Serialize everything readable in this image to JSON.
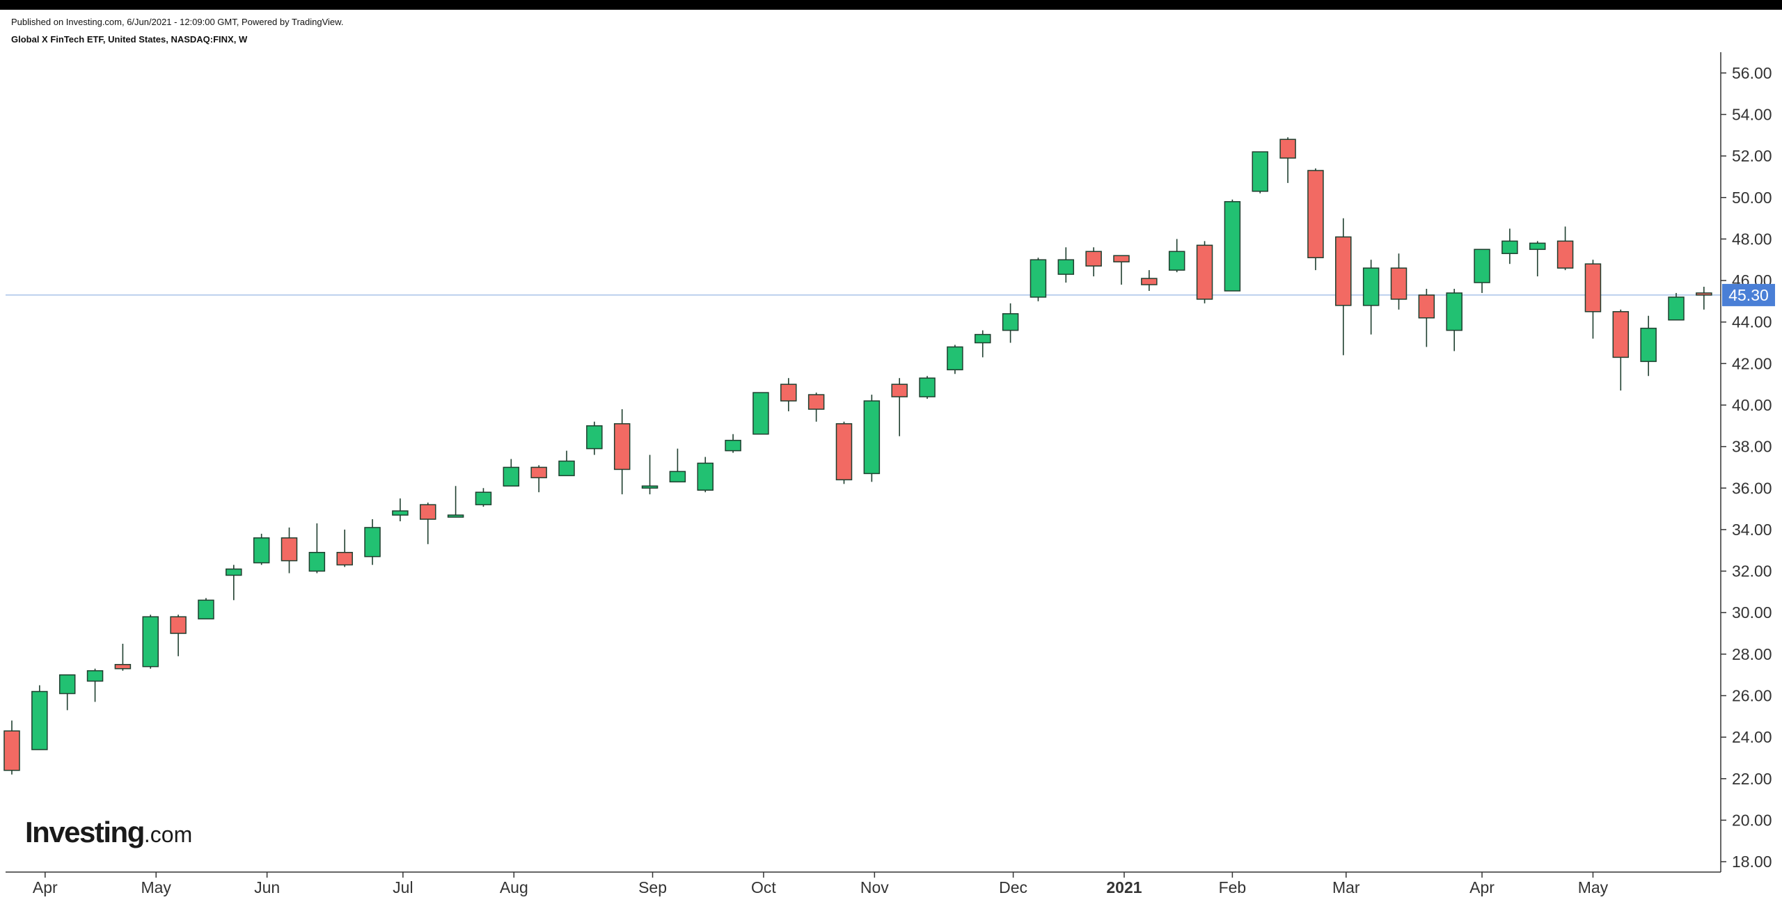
{
  "header": {
    "published": "Published on Investing.com, 6/Jun/2021 - 12:09:00 GMT, Powered by TradingView.",
    "subtitle": "Global X FinTech ETF, United States, NASDAQ:FINX, W"
  },
  "logo": {
    "brand": "Investing",
    "tld": ".com"
  },
  "colors": {
    "up": "#22c172",
    "down": "#f26a63",
    "wick": "#1f3f2f",
    "price_line": "#a9c3e8",
    "price_label_bg": "#4a7fd6"
  },
  "chart_data": {
    "type": "candlestick",
    "timeframe": "W",
    "ylim": [
      17.5,
      57.0
    ],
    "y_ticks": [
      "18.00",
      "20.00",
      "22.00",
      "24.00",
      "26.00",
      "28.00",
      "30.00",
      "32.00",
      "34.00",
      "36.00",
      "38.00",
      "40.00",
      "42.00",
      "44.00",
      "46.00",
      "48.00",
      "50.00",
      "52.00",
      "54.00",
      "56.00"
    ],
    "x_labels": [
      {
        "label": "Apr",
        "at": 1.2,
        "bold": false
      },
      {
        "label": "May",
        "at": 5.2,
        "bold": false
      },
      {
        "label": "Jun",
        "at": 9.2,
        "bold": false
      },
      {
        "label": "Jul",
        "at": 14.1,
        "bold": false
      },
      {
        "label": "Aug",
        "at": 18.1,
        "bold": false
      },
      {
        "label": "Sep",
        "at": 23.1,
        "bold": false
      },
      {
        "label": "Oct",
        "at": 27.1,
        "bold": false
      },
      {
        "label": "Nov",
        "at": 31.1,
        "bold": false
      },
      {
        "label": "Dec",
        "at": 36.1,
        "bold": false
      },
      {
        "label": "2021",
        "at": 40.1,
        "bold": true
      },
      {
        "label": "Feb",
        "at": 44.0,
        "bold": false
      },
      {
        "label": "Mar",
        "at": 48.1,
        "bold": false
      },
      {
        "label": "Apr",
        "at": 53.0,
        "bold": false
      },
      {
        "label": "May",
        "at": 57.0,
        "bold": false
      }
    ],
    "current_price": 45.3,
    "current_price_label": "45.30",
    "candles": [
      {
        "o": 24.3,
        "h": 24.8,
        "l": 22.2,
        "c": 22.4
      },
      {
        "o": 23.4,
        "h": 26.5,
        "l": 23.4,
        "c": 26.2
      },
      {
        "o": 26.1,
        "h": 27.0,
        "l": 25.3,
        "c": 27.0
      },
      {
        "o": 26.7,
        "h": 27.3,
        "l": 25.7,
        "c": 27.2
      },
      {
        "o": 27.5,
        "h": 28.5,
        "l": 27.2,
        "c": 27.3
      },
      {
        "o": 27.4,
        "h": 29.9,
        "l": 27.3,
        "c": 29.8
      },
      {
        "o": 29.8,
        "h": 29.9,
        "l": 27.9,
        "c": 29.0
      },
      {
        "o": 29.7,
        "h": 30.7,
        "l": 29.7,
        "c": 30.6
      },
      {
        "o": 31.8,
        "h": 32.3,
        "l": 30.6,
        "c": 32.1
      },
      {
        "o": 32.4,
        "h": 33.8,
        "l": 32.3,
        "c": 33.6
      },
      {
        "o": 33.6,
        "h": 34.1,
        "l": 31.9,
        "c": 32.5
      },
      {
        "o": 32.0,
        "h": 34.3,
        "l": 31.9,
        "c": 32.9
      },
      {
        "o": 32.9,
        "h": 34.0,
        "l": 32.2,
        "c": 32.3
      },
      {
        "o": 32.7,
        "h": 34.5,
        "l": 32.3,
        "c": 34.1
      },
      {
        "o": 34.7,
        "h": 35.5,
        "l": 34.4,
        "c": 34.9
      },
      {
        "o": 35.2,
        "h": 35.3,
        "l": 33.3,
        "c": 34.5
      },
      {
        "o": 34.6,
        "h": 36.1,
        "l": 34.6,
        "c": 34.7
      },
      {
        "o": 35.2,
        "h": 36.0,
        "l": 35.1,
        "c": 35.8
      },
      {
        "o": 36.1,
        "h": 37.4,
        "l": 36.1,
        "c": 37.0
      },
      {
        "o": 37.0,
        "h": 37.1,
        "l": 35.8,
        "c": 36.5
      },
      {
        "o": 36.6,
        "h": 37.8,
        "l": 36.6,
        "c": 37.3
      },
      {
        "o": 37.9,
        "h": 39.2,
        "l": 37.6,
        "c": 39.0
      },
      {
        "o": 39.1,
        "h": 39.8,
        "l": 35.7,
        "c": 36.9
      },
      {
        "o": 36.0,
        "h": 37.6,
        "l": 35.7,
        "c": 36.1
      },
      {
        "o": 36.3,
        "h": 37.9,
        "l": 36.3,
        "c": 36.8
      },
      {
        "o": 35.9,
        "h": 37.5,
        "l": 35.8,
        "c": 37.2
      },
      {
        "o": 37.8,
        "h": 38.6,
        "l": 37.7,
        "c": 38.3
      },
      {
        "o": 38.6,
        "h": 40.6,
        "l": 38.6,
        "c": 40.6
      },
      {
        "o": 41.0,
        "h": 41.3,
        "l": 39.7,
        "c": 40.2
      },
      {
        "o": 40.5,
        "h": 40.6,
        "l": 39.2,
        "c": 39.8
      },
      {
        "o": 39.1,
        "h": 39.2,
        "l": 36.2,
        "c": 36.4
      },
      {
        "o": 36.7,
        "h": 40.5,
        "l": 36.3,
        "c": 40.2
      },
      {
        "o": 41.0,
        "h": 41.3,
        "l": 38.5,
        "c": 40.4
      },
      {
        "o": 40.4,
        "h": 41.4,
        "l": 40.3,
        "c": 41.3
      },
      {
        "o": 41.7,
        "h": 42.9,
        "l": 41.5,
        "c": 42.8
      },
      {
        "o": 43.0,
        "h": 43.6,
        "l": 42.3,
        "c": 43.4
      },
      {
        "o": 43.6,
        "h": 44.9,
        "l": 43.0,
        "c": 44.4
      },
      {
        "o": 45.2,
        "h": 47.1,
        "l": 45.0,
        "c": 47.0
      },
      {
        "o": 46.3,
        "h": 47.6,
        "l": 45.9,
        "c": 47.0
      },
      {
        "o": 47.4,
        "h": 47.6,
        "l": 46.2,
        "c": 46.7
      },
      {
        "o": 47.2,
        "h": 47.2,
        "l": 45.8,
        "c": 46.9
      },
      {
        "o": 46.1,
        "h": 46.5,
        "l": 45.5,
        "c": 45.8
      },
      {
        "o": 46.5,
        "h": 48.0,
        "l": 46.4,
        "c": 47.4
      },
      {
        "o": 47.7,
        "h": 47.9,
        "l": 44.9,
        "c": 45.1
      },
      {
        "o": 45.5,
        "h": 49.9,
        "l": 45.5,
        "c": 49.8
      },
      {
        "o": 50.3,
        "h": 52.2,
        "l": 50.2,
        "c": 52.2
      },
      {
        "o": 52.8,
        "h": 52.9,
        "l": 50.7,
        "c": 51.9
      },
      {
        "o": 51.3,
        "h": 51.4,
        "l": 46.5,
        "c": 47.1
      },
      {
        "o": 48.1,
        "h": 49.0,
        "l": 42.4,
        "c": 44.8
      },
      {
        "o": 44.8,
        "h": 47.0,
        "l": 43.4,
        "c": 46.6
      },
      {
        "o": 46.6,
        "h": 47.3,
        "l": 44.6,
        "c": 45.1
      },
      {
        "o": 45.3,
        "h": 45.6,
        "l": 42.8,
        "c": 44.2
      },
      {
        "o": 43.6,
        "h": 45.6,
        "l": 42.6,
        "c": 45.4
      },
      {
        "o": 45.9,
        "h": 47.5,
        "l": 45.4,
        "c": 47.5
      },
      {
        "o": 47.3,
        "h": 48.5,
        "l": 46.8,
        "c": 47.9
      },
      {
        "o": 47.5,
        "h": 47.9,
        "l": 46.2,
        "c": 47.8
      },
      {
        "o": 47.9,
        "h": 48.6,
        "l": 46.5,
        "c": 46.6
      },
      {
        "o": 46.8,
        "h": 47.0,
        "l": 43.2,
        "c": 44.5
      },
      {
        "o": 44.5,
        "h": 44.6,
        "l": 40.7,
        "c": 42.3
      },
      {
        "o": 42.1,
        "h": 44.3,
        "l": 41.4,
        "c": 43.7
      },
      {
        "o": 44.1,
        "h": 45.4,
        "l": 44.1,
        "c": 45.2
      },
      {
        "o": 45.4,
        "h": 45.7,
        "l": 44.6,
        "c": 45.3
      }
    ]
  }
}
